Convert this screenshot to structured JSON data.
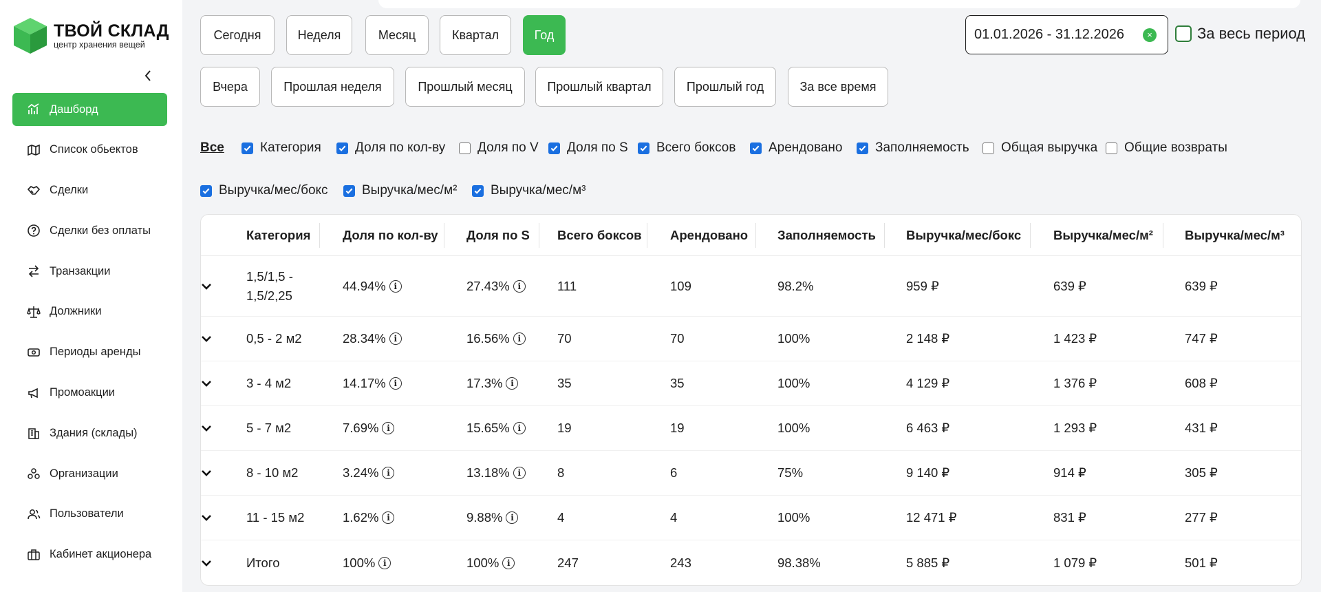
{
  "logo": {
    "title": "ТВОЙ СКЛАД",
    "subtitle": "центр хранения вещей",
    "brand_color": "#3cb952"
  },
  "sidebar": {
    "items": [
      {
        "label": "Дашборд",
        "icon": "chart-icon",
        "active": true
      },
      {
        "label": "Список обьектов",
        "icon": "map-icon"
      },
      {
        "label": "Сделки",
        "icon": "handshake-icon"
      },
      {
        "label": "Сделки без оплаты",
        "icon": "question-icon"
      },
      {
        "label": "Транзакции",
        "icon": "transfer-icon"
      },
      {
        "label": "Должники",
        "icon": "scale-icon"
      },
      {
        "label": "Периоды аренды",
        "icon": "cash-icon"
      },
      {
        "label": "Промоакции",
        "icon": "megaphone-icon"
      },
      {
        "label": "Здания (склады)",
        "icon": "building-icon"
      },
      {
        "label": "Организации",
        "icon": "org-icon"
      },
      {
        "label": "Пользователи",
        "icon": "users-icon"
      },
      {
        "label": "Кабинет акционера",
        "icon": "briefcase-icon"
      }
    ]
  },
  "periods": {
    "row1": [
      "Сегодня",
      "Неделя",
      "Месяц",
      "Квартал",
      "Год"
    ],
    "row2": [
      "Вчера",
      "Прошлая неделя",
      "Прошлый месяц",
      "Прошлый квартал",
      "Прошлый год",
      "За все время"
    ],
    "active": "Год"
  },
  "date_range": {
    "value": "01.01.2026 - 31.12.2026",
    "clear_symbol": "×"
  },
  "all_period": {
    "label": "За весь период",
    "checked": false
  },
  "filters": {
    "all_label": "Все",
    "columns": [
      {
        "label": "Категория",
        "checked": true
      },
      {
        "label": "Доля по кол-ву",
        "checked": true
      },
      {
        "label": "Доля по V",
        "checked": false
      },
      {
        "label": "Доля по S",
        "checked": true
      },
      {
        "label": "Всего боксов",
        "checked": true
      },
      {
        "label": "Арендовано",
        "checked": true
      },
      {
        "label": "Заполняемость",
        "checked": true
      },
      {
        "label": "Общая выручка",
        "checked": false
      },
      {
        "label": "Общие возвраты",
        "checked": false
      },
      {
        "label": "Выручка/мес/бокс",
        "checked": true
      },
      {
        "label": "Выручка/мес/м²",
        "checked": true
      },
      {
        "label": "Выручка/мес/м³",
        "checked": true
      }
    ]
  },
  "table": {
    "headers": [
      "Категория",
      "Доля по кол-ву",
      "Доля по S",
      "Всего боксов",
      "Арендовано",
      "Заполняемость",
      "Выручка/мес/бокс",
      "Выручка/мес/м²",
      "Выручка/мес/м³"
    ],
    "rows": [
      [
        "1,5/1,5 -\n1,5/2,25",
        "44.94%",
        "27.43%",
        "111",
        "109",
        "98.2%",
        "959 ₽",
        "639 ₽",
        "639 ₽"
      ],
      [
        "0,5 - 2 м2",
        "28.34%",
        "16.56%",
        "70",
        "70",
        "100%",
        "2 148 ₽",
        "1 423 ₽",
        "747 ₽"
      ],
      [
        "3 - 4 м2",
        "14.17%",
        "17.3%",
        "35",
        "35",
        "100%",
        "4 129 ₽",
        "1 376 ₽",
        "608 ₽"
      ],
      [
        "5 - 7 м2",
        "7.69%",
        "15.65%",
        "19",
        "19",
        "100%",
        "6 463 ₽",
        "1 293 ₽",
        "431 ₽"
      ],
      [
        "8 - 10 м2",
        "3.24%",
        "13.18%",
        "8",
        "6",
        "75%",
        "9 140 ₽",
        "914 ₽",
        "305 ₽"
      ],
      [
        "11 - 15 м2",
        "1.62%",
        "9.88%",
        "4",
        "4",
        "100%",
        "12 471 ₽",
        "831 ₽",
        "277 ₽"
      ],
      [
        "Итого",
        "100%",
        "100%",
        "247",
        "243",
        "98.38%",
        "5 885 ₽",
        "1 079 ₽",
        "501 ₽"
      ]
    ],
    "info_symbol": "i"
  }
}
